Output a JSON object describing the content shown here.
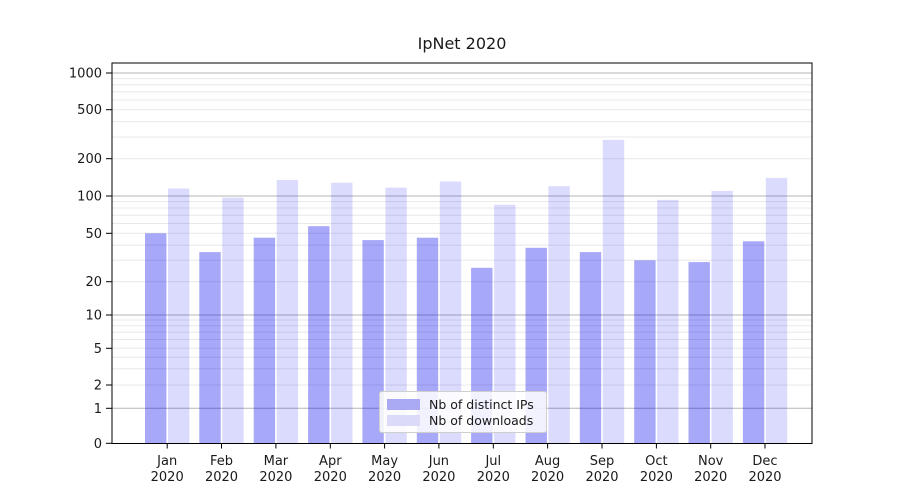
{
  "chart_data": {
    "type": "bar",
    "title": "IpNet 2020",
    "categories": [
      "Jan",
      "Feb",
      "Mar",
      "Apr",
      "May",
      "Jun",
      "Jul",
      "Aug",
      "Sep",
      "Oct",
      "Nov",
      "Dec"
    ],
    "year": "2020",
    "series": [
      {
        "name": "Nb of distinct IPs",
        "color": "rgba(0,0,238,0.34)",
        "legend_color": "#a9a9f4",
        "values": [
          50,
          35,
          46,
          57,
          44,
          46,
          26,
          38,
          35,
          30,
          29,
          43
        ]
      },
      {
        "name": "Nb of downloads",
        "color": "rgba(0,0,238,0.14)",
        "legend_color": "#dbdbf9",
        "values": [
          115,
          97,
          135,
          128,
          117,
          131,
          85,
          120,
          285,
          93,
          110,
          140
        ]
      }
    ],
    "xlabel": "",
    "ylabel": "",
    "yscale": "symlog",
    "yticks": [
      0,
      1,
      2,
      5,
      10,
      20,
      50,
      100,
      200,
      500,
      1000
    ],
    "ylim": [
      0,
      1200
    ],
    "grid": true,
    "legend_position": "lower center",
    "axis_color": "#000000",
    "text_color": "#1a1a1a",
    "major_grid_color": "#b5b5b5",
    "minor_grid_color": "#e8e8e8"
  }
}
